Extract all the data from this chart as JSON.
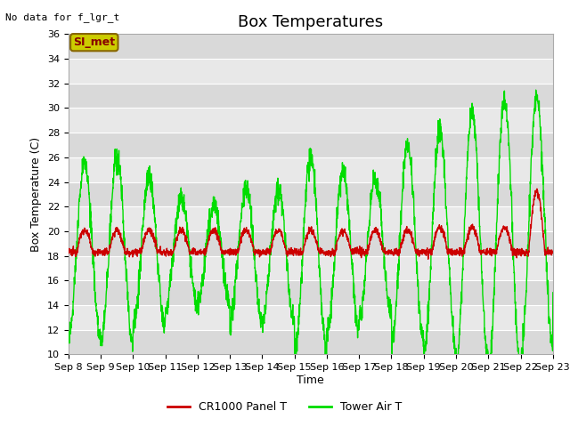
{
  "title": "Box Temperatures",
  "xlabel": "Time",
  "ylabel": "Box Temperature (C)",
  "annotation_text": "No data for f_lgr_t",
  "legend_label": "SI_met",
  "ylim": [
    10,
    36
  ],
  "yticks": [
    10,
    12,
    14,
    16,
    18,
    20,
    22,
    24,
    26,
    28,
    30,
    32,
    34,
    36
  ],
  "xtick_labels": [
    "Sep 8",
    "Sep 9",
    "Sep 10",
    "Sep 11",
    "Sep 12",
    "Sep 13",
    "Sep 14",
    "Sep 15",
    "Sep 16",
    "Sep 17",
    "Sep 18",
    "Sep 19",
    "Sep 20",
    "Sep 21",
    "Sep 22",
    "Sep 23"
  ],
  "fig_bg_color": "#ffffff",
  "plot_bg_color": "#e8e8e8",
  "line1_color": "#cc0000",
  "line2_color": "#00dd00",
  "legend_box_facecolor": "#cccc00",
  "legend_box_edgecolor": "#886600",
  "title_fontsize": 13,
  "axis_label_fontsize": 9,
  "tick_fontsize": 8,
  "grid_color": "#ffffff",
  "stripe_color": "#d8d8d8"
}
